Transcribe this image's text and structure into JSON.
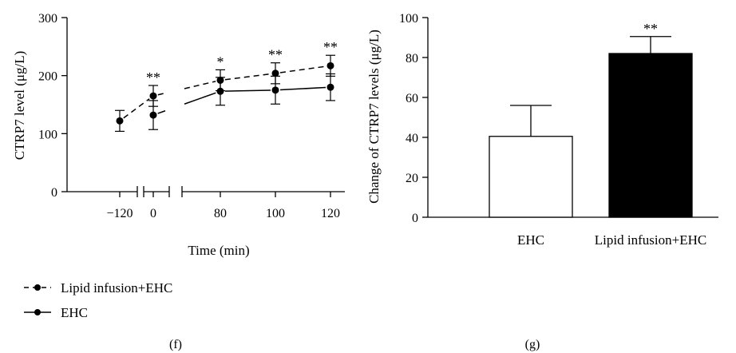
{
  "chart_data": [
    {
      "type": "line",
      "panel_label": "(f)",
      "xlabel": "Time (min)",
      "ylabel": "CTRP7 level (μg/L)",
      "ylim": [
        0,
        300
      ],
      "y_ticks": [
        0,
        100,
        200,
        300
      ],
      "x_ticks": [
        "-120",
        "0",
        "80",
        "100",
        "120"
      ],
      "series": [
        {
          "name": "Lipid infusion+EHC",
          "style": "dashed",
          "x": [
            -120,
            0,
            80,
            100,
            120
          ],
          "y": [
            122,
            165,
            192,
            204,
            217
          ],
          "error": [
            18,
            18,
            18,
            18,
            18
          ],
          "significance": [
            "",
            "**",
            "*",
            "**",
            "**"
          ]
        },
        {
          "name": "EHC",
          "style": "solid",
          "x": [
            0,
            80,
            100,
            120
          ],
          "y": [
            132,
            173,
            175,
            180
          ],
          "error": [
            25,
            24,
            24,
            23
          ],
          "significance": [
            "",
            "",
            "",
            ""
          ]
        }
      ],
      "legend_placement": "bottom-left"
    },
    {
      "type": "bar",
      "panel_label": "(g)",
      "ylabel": "Change of CTRP7 levels (μg/L)",
      "ylim": [
        0,
        100
      ],
      "y_ticks": [
        0,
        20,
        40,
        60,
        80,
        100
      ],
      "categories": [
        "EHC",
        "Lipid infusion+EHC"
      ],
      "values": [
        40.5,
        82
      ],
      "errors": [
        15.5,
        8.5
      ],
      "bar_colors": [
        "#ffffff",
        "#000000"
      ],
      "significance": [
        "",
        "**"
      ]
    }
  ]
}
